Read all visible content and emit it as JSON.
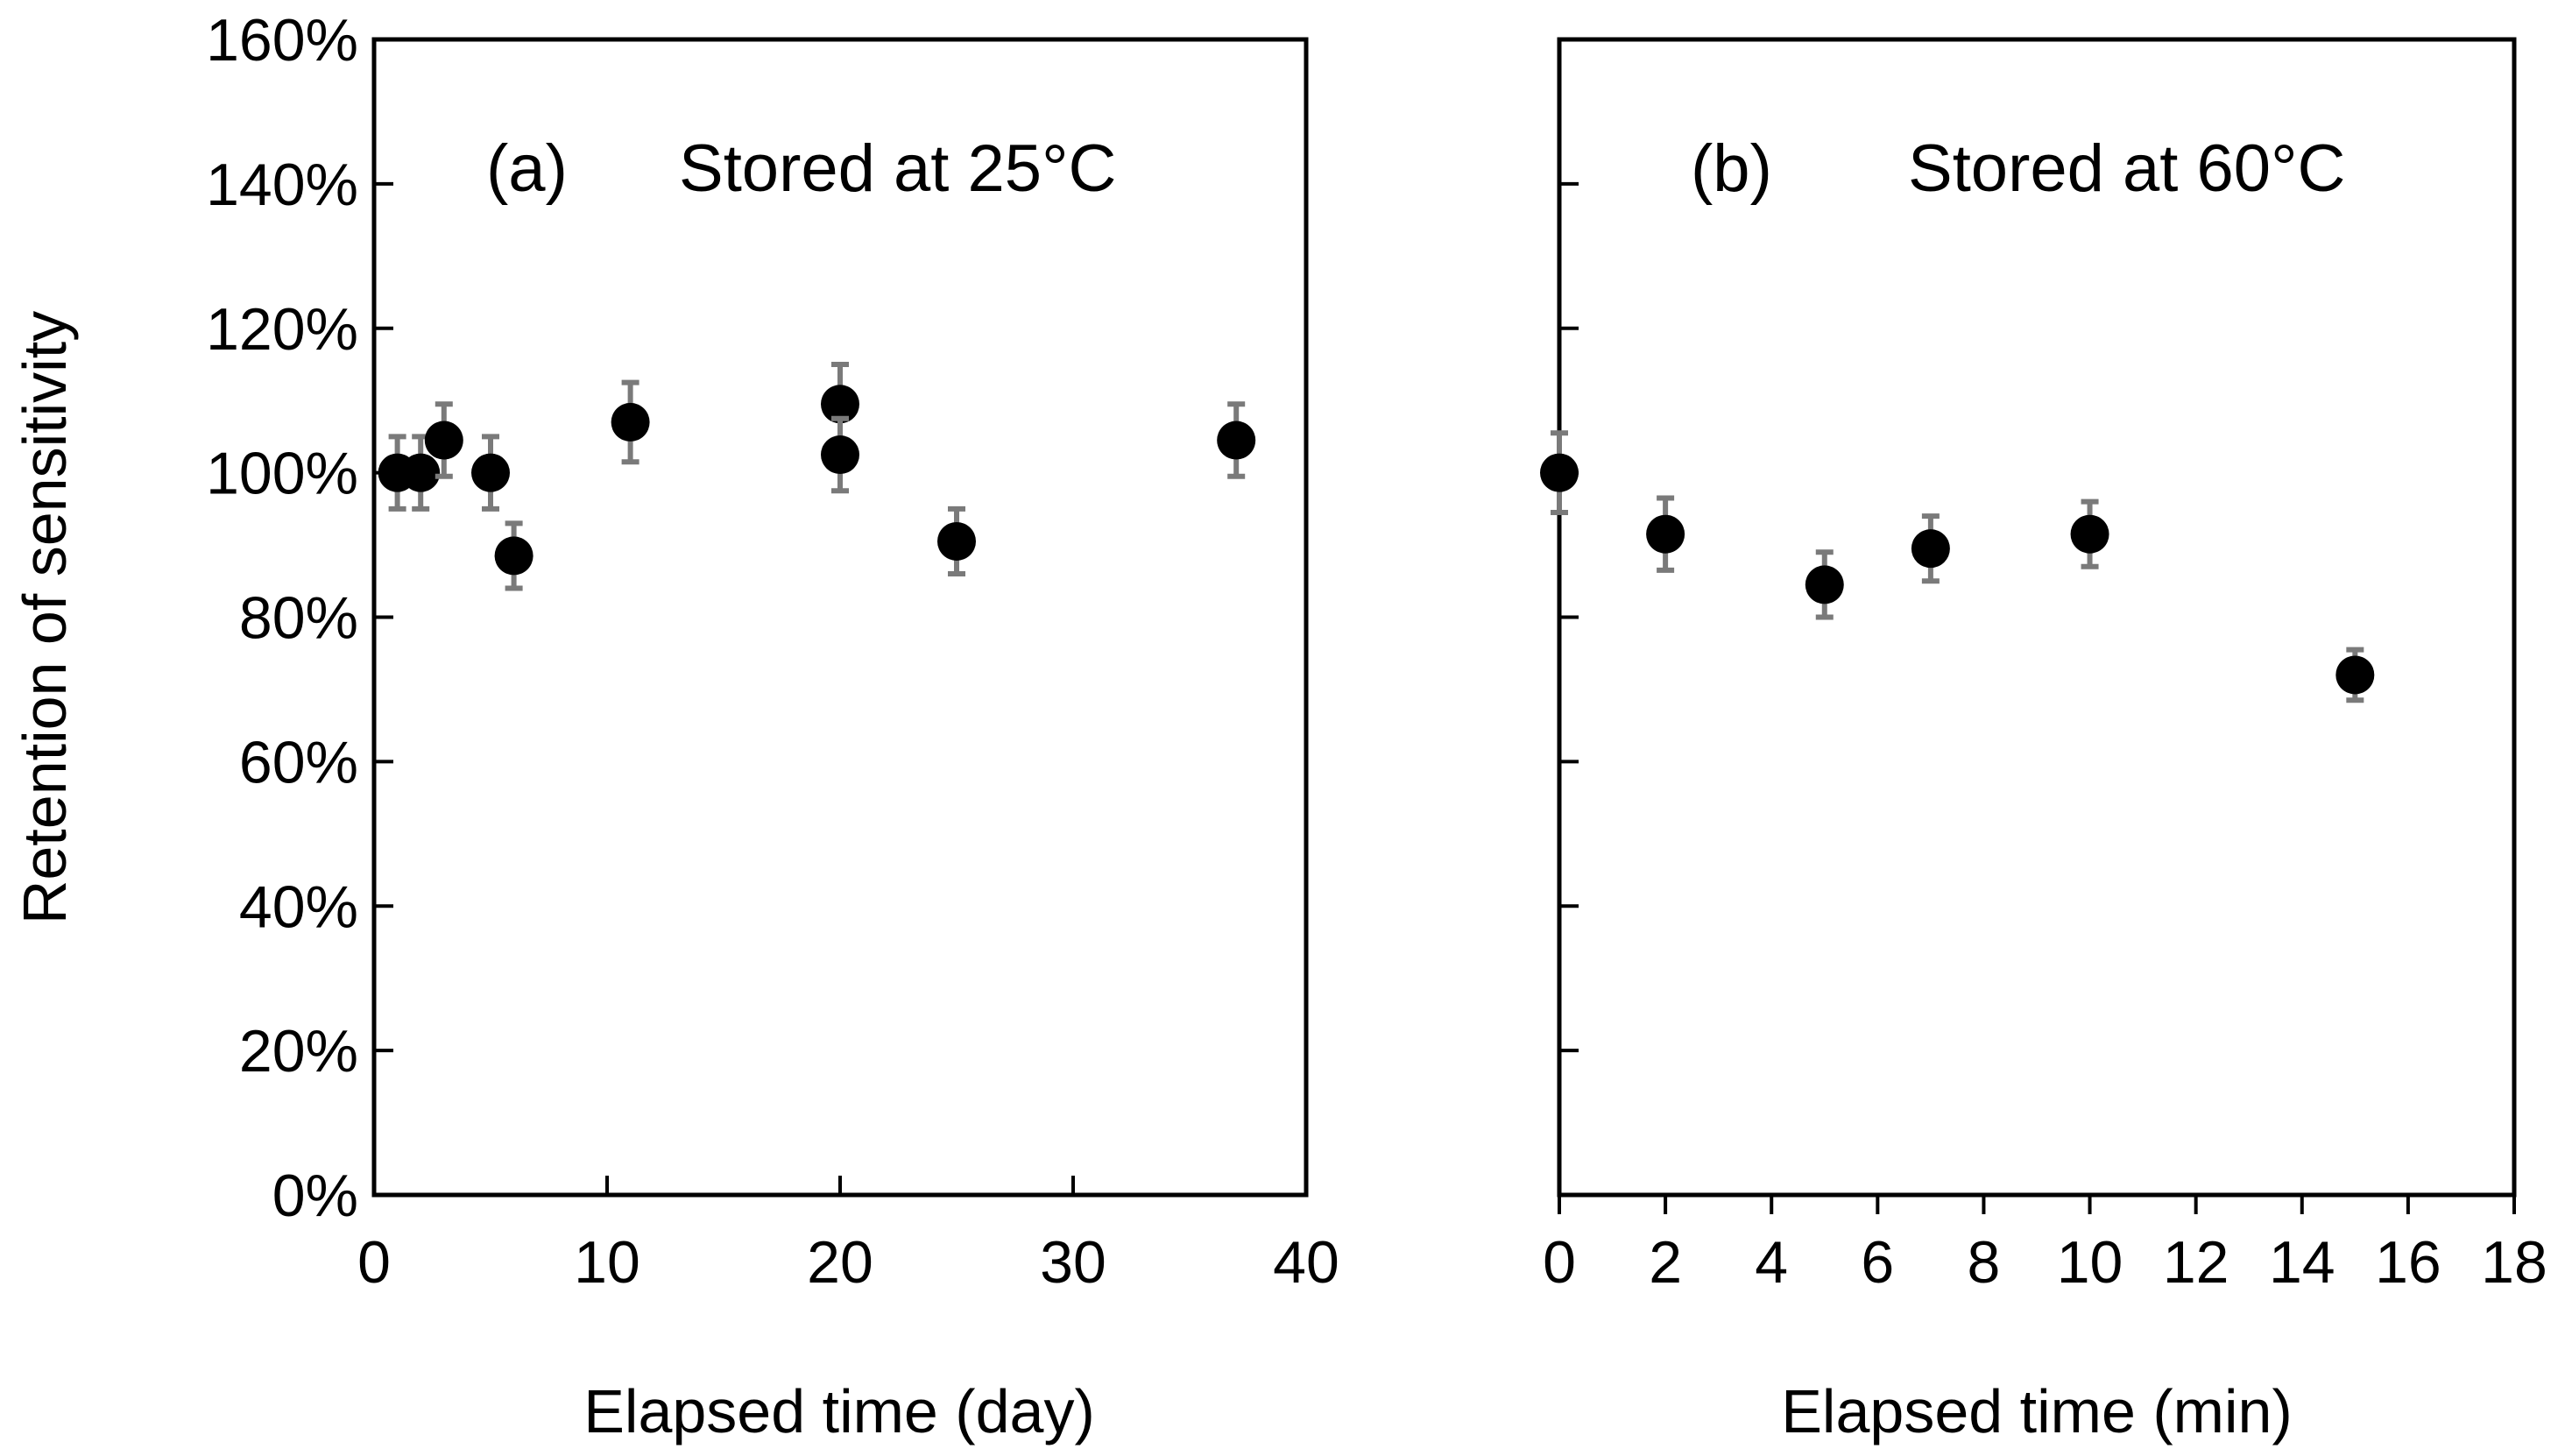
{
  "chart_data": [
    {
      "type": "scatter",
      "panel_label": "(a)",
      "title": "Stored at 25°C",
      "xlabel": "Elapsed time  (day)",
      "ylabel": "Retention of sensitivity",
      "xlim": [
        0,
        40
      ],
      "ylim": [
        0,
        160
      ],
      "x_ticks": [
        0,
        10,
        20,
        30,
        40
      ],
      "y_ticks": [
        0,
        20,
        40,
        60,
        80,
        100,
        120,
        140,
        160
      ],
      "y_tick_labels": [
        "0%",
        "20%",
        "40%",
        "60%",
        "80%",
        "100%",
        "120%",
        "140%",
        "160%"
      ],
      "series": [
        {
          "name": "Stored at 25°C",
          "x": [
            1,
            2,
            3,
            5,
            6,
            11,
            20,
            20,
            25,
            37
          ],
          "y": [
            100,
            100,
            104.5,
            100,
            88.5,
            107,
            109.5,
            102.5,
            90.5,
            104.5
          ],
          "err": [
            5,
            5,
            5,
            5,
            4.5,
            5.5,
            5.5,
            5,
            4.5,
            5
          ]
        }
      ],
      "marker_color": "#000000",
      "errorbar_color": "#7a7a7a"
    },
    {
      "type": "scatter",
      "panel_label": "(b)",
      "title": "Stored at 60°C",
      "xlabel": "Elapsed time  (min)",
      "ylabel": "",
      "xlim": [
        0,
        18
      ],
      "ylim": [
        0,
        160
      ],
      "x_ticks": [
        0,
        2,
        4,
        6,
        8,
        10,
        12,
        14,
        16,
        18
      ],
      "y_ticks": [
        0,
        20,
        40,
        60,
        80,
        100,
        120,
        140,
        160
      ],
      "series": [
        {
          "name": "Stored at 60°C",
          "x": [
            0,
            2,
            5,
            7,
            10,
            15
          ],
          "y": [
            100,
            91.5,
            84.5,
            89.5,
            91.5,
            72
          ],
          "err": [
            5.5,
            5,
            4.5,
            4.5,
            4.5,
            3.5
          ]
        }
      ],
      "marker_color": "#000000",
      "errorbar_color": "#7a7a7a"
    }
  ]
}
